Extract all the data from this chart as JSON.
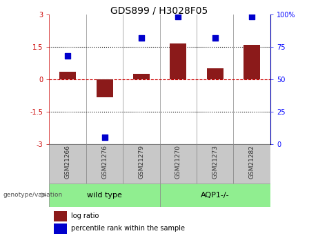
{
  "title": "GDS899 / H3028F05",
  "samples": [
    "GSM21266",
    "GSM21276",
    "GSM21279",
    "GSM21270",
    "GSM21273",
    "GSM21282"
  ],
  "log_ratios": [
    0.35,
    -0.85,
    0.25,
    1.65,
    0.5,
    1.6
  ],
  "percentile_ranks": [
    68,
    5,
    82,
    98,
    82,
    98
  ],
  "bar_color": "#8B1A1A",
  "dot_color": "#0000CC",
  "ylim_left": [
    -3,
    3
  ],
  "ylim_right": [
    0,
    100
  ],
  "yticks_left": [
    -3,
    -1.5,
    0,
    1.5,
    3
  ],
  "yticks_right": [
    0,
    25,
    50,
    75,
    100
  ],
  "hline_zero_color": "#CC0000",
  "hline_dotted_color": "#000000",
  "legend_labels": [
    "log ratio",
    "percentile rank within the sample"
  ],
  "genotype_label": "genotype/variation",
  "sample_box_color": "#C8C8C8",
  "sample_box_edge": "#888888",
  "group_colors": [
    "#90EE90",
    "#90EE90"
  ],
  "group_labels": [
    "wild type",
    "AQP1-/-"
  ],
  "group_ranges": [
    [
      0,
      3
    ],
    [
      3,
      6
    ]
  ],
  "bar_width": 0.45,
  "dot_size": 28,
  "title_fontsize": 10,
  "tick_fontsize": 7,
  "label_fontsize": 6.5,
  "legend_fontsize": 7,
  "group_fontsize": 8
}
